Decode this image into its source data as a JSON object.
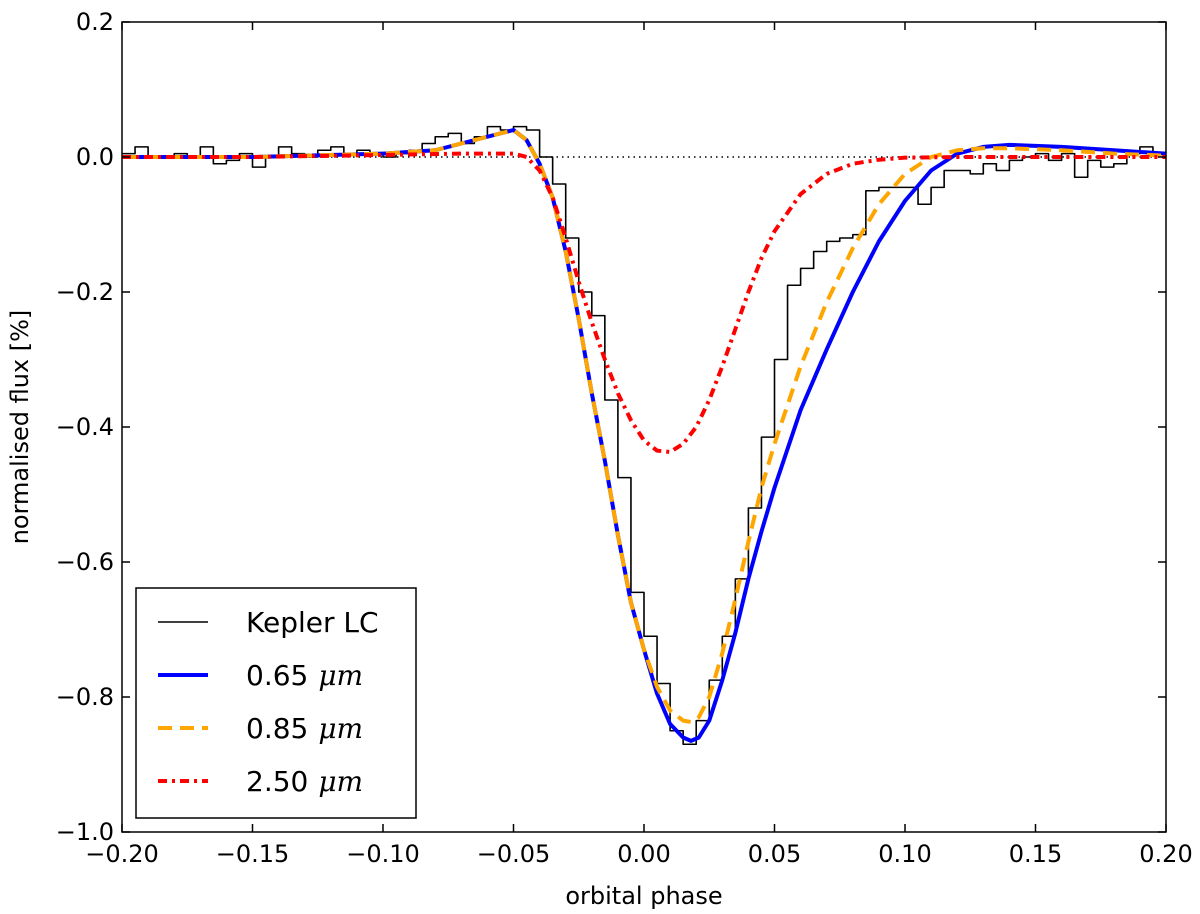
{
  "chart_data": {
    "type": "line",
    "title": "",
    "xlabel": "orbital phase",
    "ylabel": "normalised flux [%]",
    "xlim": [
      -0.2,
      0.2
    ],
    "ylim": [
      -1.0,
      0.2
    ],
    "xticks": [
      "−0.20",
      "−0.15",
      "−0.10",
      "−0.05",
      "0.00",
      "0.05",
      "0.10",
      "0.15",
      "0.20"
    ],
    "xtick_values": [
      -0.2,
      -0.15,
      -0.1,
      -0.05,
      0.0,
      0.05,
      0.1,
      0.15,
      0.2
    ],
    "yticks": [
      "−1.0",
      "−0.8",
      "−0.6",
      "−0.4",
      "−0.2",
      "0.0",
      "0.2"
    ],
    "ytick_values": [
      -1.0,
      -0.8,
      -0.6,
      -0.4,
      -0.2,
      0.0,
      0.2
    ],
    "grid": false,
    "legend_position": "lower-left",
    "reference_line": {
      "y": 0.0,
      "style": "dotted",
      "color": "#000000"
    },
    "series": [
      {
        "name": "Kepler LC",
        "name_text": "Kepler LC",
        "unit": "",
        "color": "#000000",
        "style": "steps",
        "bin_width": 0.005,
        "x": [
          -0.2,
          -0.195,
          -0.19,
          -0.185,
          -0.18,
          -0.175,
          -0.17,
          -0.165,
          -0.16,
          -0.155,
          -0.15,
          -0.145,
          -0.14,
          -0.135,
          -0.13,
          -0.125,
          -0.12,
          -0.115,
          -0.11,
          -0.105,
          -0.1,
          -0.095,
          -0.09,
          -0.085,
          -0.08,
          -0.075,
          -0.07,
          -0.065,
          -0.06,
          -0.055,
          -0.05,
          -0.045,
          -0.04,
          -0.035,
          -0.03,
          -0.025,
          -0.02,
          -0.015,
          -0.01,
          -0.005,
          0.0,
          0.005,
          0.01,
          0.015,
          0.02,
          0.025,
          0.03,
          0.035,
          0.04,
          0.045,
          0.05,
          0.055,
          0.06,
          0.065,
          0.07,
          0.075,
          0.08,
          0.085,
          0.09,
          0.095,
          0.1,
          0.105,
          0.11,
          0.115,
          0.12,
          0.125,
          0.13,
          0.135,
          0.14,
          0.145,
          0.15,
          0.155,
          0.16,
          0.165,
          0.17,
          0.175,
          0.18,
          0.185,
          0.19,
          0.195
        ],
        "y": [
          0.005,
          0.015,
          0.0,
          0.0,
          0.005,
          0.0,
          0.015,
          -0.01,
          -0.005,
          0.005,
          -0.015,
          0.0,
          0.015,
          0.005,
          0.0,
          0.01,
          0.015,
          0.005,
          0.01,
          0.005,
          0.0,
          0.005,
          0.01,
          0.02,
          0.03,
          0.035,
          0.02,
          0.03,
          0.045,
          0.04,
          0.045,
          0.04,
          0.0,
          -0.04,
          -0.12,
          -0.2,
          -0.235,
          -0.36,
          -0.475,
          -0.645,
          -0.71,
          -0.78,
          -0.85,
          -0.87,
          -0.835,
          -0.775,
          -0.71,
          -0.625,
          -0.52,
          -0.415,
          -0.3,
          -0.19,
          -0.165,
          -0.14,
          -0.125,
          -0.12,
          -0.115,
          -0.05,
          -0.045,
          -0.045,
          -0.045,
          -0.07,
          -0.045,
          -0.02,
          -0.02,
          -0.025,
          -0.01,
          -0.02,
          -0.005,
          0.0,
          0.005,
          -0.005,
          0.005,
          -0.03,
          -0.005,
          -0.015,
          -0.01,
          0.005,
          0.015,
          0.005
        ]
      },
      {
        "name": "0.65 μm",
        "name_text": "0.65",
        "unit": "μm",
        "color": "#0000ff",
        "style": "solid",
        "x": [
          -0.2,
          -0.15,
          -0.1,
          -0.08,
          -0.06,
          -0.05,
          -0.045,
          -0.04,
          -0.035,
          -0.03,
          -0.025,
          -0.02,
          -0.015,
          -0.01,
          -0.005,
          0.0,
          0.005,
          0.01,
          0.015,
          0.018,
          0.021,
          0.025,
          0.03,
          0.035,
          0.04,
          0.045,
          0.05,
          0.06,
          0.07,
          0.08,
          0.09,
          0.1,
          0.11,
          0.12,
          0.13,
          0.14,
          0.16,
          0.18,
          0.2
        ],
        "y": [
          0.0,
          0.0,
          0.005,
          0.01,
          0.03,
          0.04,
          0.025,
          -0.01,
          -0.06,
          -0.14,
          -0.24,
          -0.35,
          -0.45,
          -0.56,
          -0.66,
          -0.73,
          -0.795,
          -0.84,
          -0.86,
          -0.865,
          -0.86,
          -0.835,
          -0.775,
          -0.705,
          -0.625,
          -0.555,
          -0.49,
          -0.375,
          -0.285,
          -0.2,
          -0.125,
          -0.065,
          -0.02,
          0.005,
          0.015,
          0.018,
          0.015,
          0.01,
          0.005
        ]
      },
      {
        "name": "0.85 μm",
        "name_text": "0.85",
        "unit": "μm",
        "color": "#ffa500",
        "style": "dashed",
        "x": [
          -0.2,
          -0.15,
          -0.1,
          -0.08,
          -0.06,
          -0.05,
          -0.045,
          -0.04,
          -0.035,
          -0.03,
          -0.025,
          -0.02,
          -0.015,
          -0.01,
          -0.005,
          0.0,
          0.005,
          0.01,
          0.015,
          0.018,
          0.021,
          0.025,
          0.03,
          0.035,
          0.04,
          0.045,
          0.05,
          0.06,
          0.07,
          0.08,
          0.09,
          0.1,
          0.11,
          0.12,
          0.13,
          0.14,
          0.16,
          0.18,
          0.2
        ],
        "y": [
          0.0,
          0.0,
          0.005,
          0.01,
          0.03,
          0.04,
          0.025,
          -0.01,
          -0.06,
          -0.14,
          -0.24,
          -0.35,
          -0.45,
          -0.56,
          -0.66,
          -0.73,
          -0.785,
          -0.82,
          -0.835,
          -0.837,
          -0.83,
          -0.8,
          -0.735,
          -0.655,
          -0.57,
          -0.49,
          -0.425,
          -0.31,
          -0.215,
          -0.135,
          -0.07,
          -0.025,
          0.0,
          0.01,
          0.013,
          0.013,
          0.01,
          0.005,
          0.002
        ]
      },
      {
        "name": "2.50 μm",
        "name_text": "2.50",
        "unit": "μm",
        "color": "#ff0000",
        "style": "dashdot-dense",
        "x": [
          -0.2,
          -0.15,
          -0.1,
          -0.07,
          -0.05,
          -0.045,
          -0.04,
          -0.035,
          -0.03,
          -0.025,
          -0.02,
          -0.015,
          -0.01,
          -0.005,
          0.0,
          0.005,
          0.01,
          0.015,
          0.02,
          0.025,
          0.03,
          0.035,
          0.04,
          0.045,
          0.05,
          0.06,
          0.07,
          0.08,
          0.09,
          0.1,
          0.12,
          0.15,
          0.2
        ],
        "y": [
          0.0,
          0.0,
          0.003,
          0.005,
          0.005,
          0.0,
          -0.02,
          -0.06,
          -0.12,
          -0.185,
          -0.245,
          -0.3,
          -0.35,
          -0.39,
          -0.42,
          -0.435,
          -0.437,
          -0.425,
          -0.4,
          -0.36,
          -0.31,
          -0.255,
          -0.2,
          -0.15,
          -0.11,
          -0.055,
          -0.025,
          -0.01,
          -0.004,
          -0.001,
          0.0,
          0.0,
          0.0
        ]
      }
    ]
  }
}
